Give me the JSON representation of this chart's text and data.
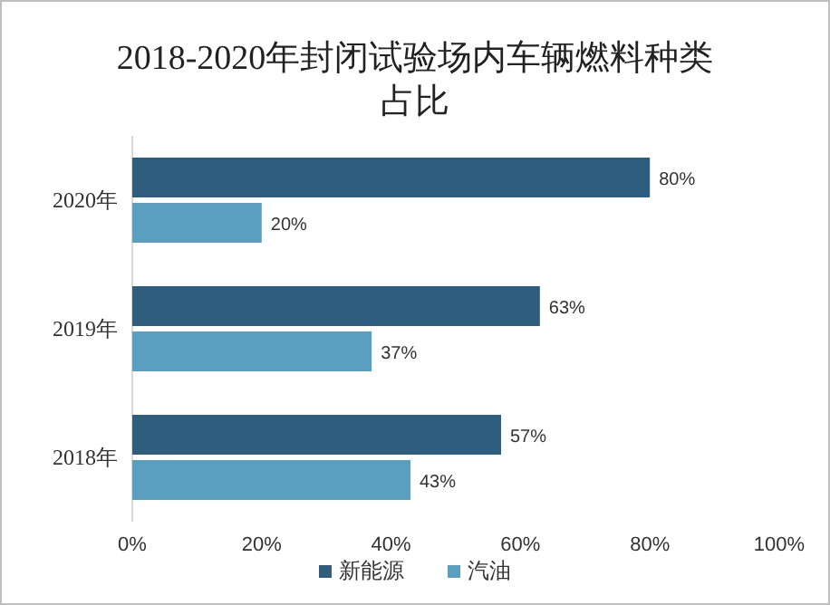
{
  "chart_data": {
    "type": "bar",
    "orientation": "horizontal",
    "title": "2018-2020年封闭试验场内车辆燃料种类占比",
    "categories": [
      "2020年",
      "2019年",
      "2018年"
    ],
    "series": [
      {
        "name": "新能源",
        "color": "#2f5d7e",
        "values": [
          80,
          63,
          57
        ],
        "value_labels": [
          "80%",
          "63%",
          "57%"
        ]
      },
      {
        "name": "汽油",
        "color": "#5a9fc0",
        "values": [
          20,
          37,
          43
        ],
        "value_labels": [
          "20%",
          "37%",
          "43%"
        ]
      }
    ],
    "xlim": [
      0,
      100
    ],
    "xticks": [
      {
        "value": 0,
        "label": "0%"
      },
      {
        "value": 20,
        "label": "20%"
      },
      {
        "value": 40,
        "label": "40%"
      },
      {
        "value": 60,
        "label": "60%"
      },
      {
        "value": 80,
        "label": "80%"
      },
      {
        "value": 100,
        "label": "100%"
      }
    ],
    "grid": false,
    "legend": "bottom"
  }
}
